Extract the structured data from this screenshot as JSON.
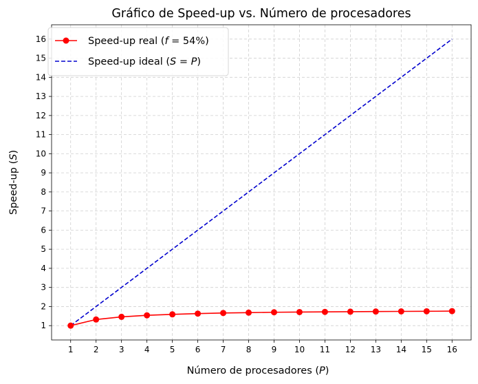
{
  "chart_data": {
    "type": "line",
    "title": "Gráfico de Speed-up vs. Número de procesadores",
    "xlabel_prefix": "Número de procesadores (",
    "xlabel_var": "P",
    "xlabel_suffix": ")",
    "ylabel_prefix": "Speed-up (",
    "ylabel_var": "S",
    "ylabel_suffix": ")",
    "x": [
      1,
      2,
      3,
      4,
      5,
      6,
      7,
      8,
      9,
      10,
      11,
      12,
      13,
      14,
      15,
      16
    ],
    "xlim": [
      0.25,
      16.75
    ],
    "ylim": [
      0.25,
      16.75
    ],
    "xticks": [
      1,
      2,
      3,
      4,
      5,
      6,
      7,
      8,
      9,
      10,
      11,
      12,
      13,
      14,
      15,
      16
    ],
    "yticks": [
      1,
      2,
      3,
      4,
      5,
      6,
      7,
      8,
      9,
      10,
      11,
      12,
      13,
      14,
      15,
      16
    ],
    "grid": true,
    "legend_position": "top-left",
    "series": [
      {
        "name": "Speed-up real (f = 54%)",
        "legend_prefix": "Speed-up real (",
        "legend_var": "f",
        "legend_suffix": " = 54%)",
        "color": "#ff0000",
        "line_style": "solid",
        "marker": "circle",
        "values": [
          1.0,
          1.32,
          1.46,
          1.54,
          1.59,
          1.63,
          1.66,
          1.68,
          1.7,
          1.71,
          1.72,
          1.73,
          1.74,
          1.745,
          1.75,
          1.76
        ]
      },
      {
        "name": "Speed-up ideal (S = P)",
        "legend_prefix": "Speed-up ideal (",
        "legend_var": "S = P",
        "legend_suffix": ")",
        "color": "#0000cd",
        "line_style": "dashed",
        "marker": "none",
        "values": [
          1,
          2,
          3,
          4,
          5,
          6,
          7,
          8,
          9,
          10,
          11,
          12,
          13,
          14,
          15,
          16
        ]
      }
    ]
  }
}
